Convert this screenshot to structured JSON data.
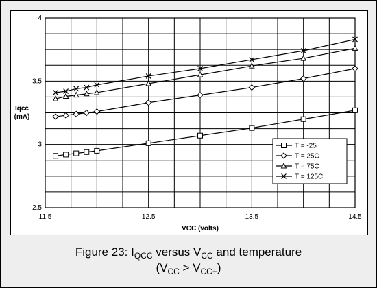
{
  "chart_data": {
    "type": "line",
    "xlabel": "VCC (volts)",
    "ylabel_line1": "Iqcc",
    "ylabel_line2": "(mA)",
    "xlim": [
      11.5,
      14.5
    ],
    "ylim": [
      2.5,
      4.0
    ],
    "x_tick_labels": [
      "11.5",
      "12.5",
      "13.5",
      "14.5"
    ],
    "y_tick_labels": [
      "2.5",
      "3",
      "3.5",
      "4"
    ],
    "grid": true,
    "legend_position": "right",
    "series": [
      {
        "name": "T = -25",
        "marker": "square",
        "x": [
          11.6,
          11.7,
          11.8,
          11.9,
          12.0,
          12.5,
          13.0,
          13.5,
          14.0,
          14.5
        ],
        "y": [
          2.91,
          2.92,
          2.93,
          2.94,
          2.95,
          3.01,
          3.07,
          3.13,
          3.2,
          3.27
        ]
      },
      {
        "name": "T = 25C",
        "marker": "diamond",
        "x": [
          11.6,
          11.7,
          11.8,
          11.9,
          12.0,
          12.5,
          13.0,
          13.5,
          14.0,
          14.5
        ],
        "y": [
          3.22,
          3.23,
          3.24,
          3.25,
          3.26,
          3.33,
          3.39,
          3.45,
          3.52,
          3.6
        ]
      },
      {
        "name": "T = 75C",
        "marker": "triangle",
        "x": [
          11.6,
          11.7,
          11.8,
          11.9,
          12.0,
          12.5,
          13.0,
          13.5,
          14.0,
          14.5
        ],
        "y": [
          3.36,
          3.38,
          3.39,
          3.4,
          3.41,
          3.48,
          3.55,
          3.62,
          3.68,
          3.76
        ]
      },
      {
        "name": "T = 125C",
        "marker": "x",
        "x": [
          11.6,
          11.7,
          11.8,
          11.9,
          12.0,
          12.5,
          13.0,
          13.5,
          14.0,
          14.5
        ],
        "y": [
          3.41,
          3.42,
          3.44,
          3.45,
          3.47,
          3.54,
          3.6,
          3.67,
          3.74,
          3.83
        ]
      }
    ]
  },
  "caption": {
    "line1_prefix": "Figure 23: I",
    "line1_sub1": "QCC",
    "line1_mid": " versus V",
    "line1_sub2": "CC",
    "line1_suffix": " and temperature",
    "line2_prefix": "(V",
    "line2_sub1": "CC",
    "line2_mid": " > V",
    "line2_sub2": "CC+",
    "line2_suffix": ")"
  }
}
